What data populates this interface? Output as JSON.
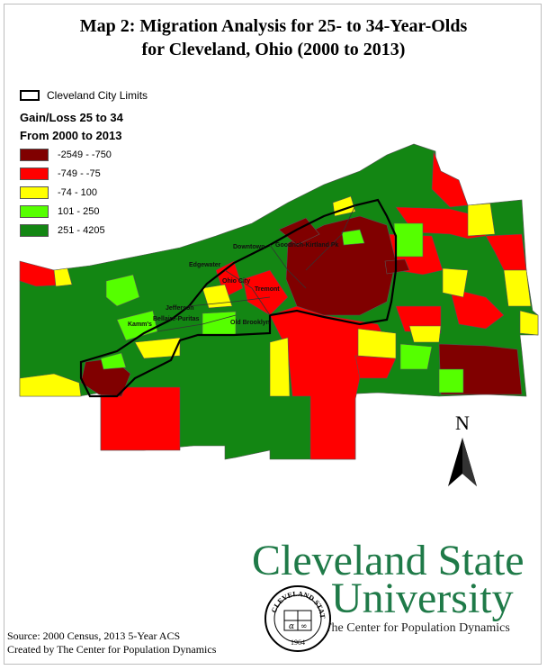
{
  "title": {
    "line1": "Map 2: Migration Analysis for 25- to 34-Year-Olds",
    "line2": "for Cleveland, Ohio (2000 to 2013)"
  },
  "legend": {
    "limits_label": "Cleveland City Limits",
    "heading1": "Gain/Loss 25 to 34",
    "heading2": "From 2000 to 2013",
    "classes": [
      {
        "label": "-2549 - -750",
        "color": "#800000"
      },
      {
        "label": "-749 - -75",
        "color": "#ff0000"
      },
      {
        "label": "-74 - 100",
        "color": "#ffff00"
      },
      {
        "label": "101 - 250",
        "color": "#55ff00"
      },
      {
        "label": "251 - 4205",
        "color": "#138613"
      }
    ]
  },
  "places": [
    "Downtown",
    "Goodrich-Kirtland Pk",
    "Edgewater",
    "Ohio City",
    "Tremont",
    "Kamm's",
    "Jefferson",
    "Bellaire-Puritas",
    "Old Brooklyn"
  ],
  "north_label": "N",
  "university": {
    "line1": "Cleveland State",
    "line2": "University",
    "line3": "The Center for Population Dynamics"
  },
  "seal": {
    "top_text": "CLEVELAND STATE",
    "year": "1964"
  },
  "source": {
    "line1": "Source: 2000 Census, 2013 5-Year ACS",
    "line2": "Created by The Center for Population Dynamics"
  }
}
